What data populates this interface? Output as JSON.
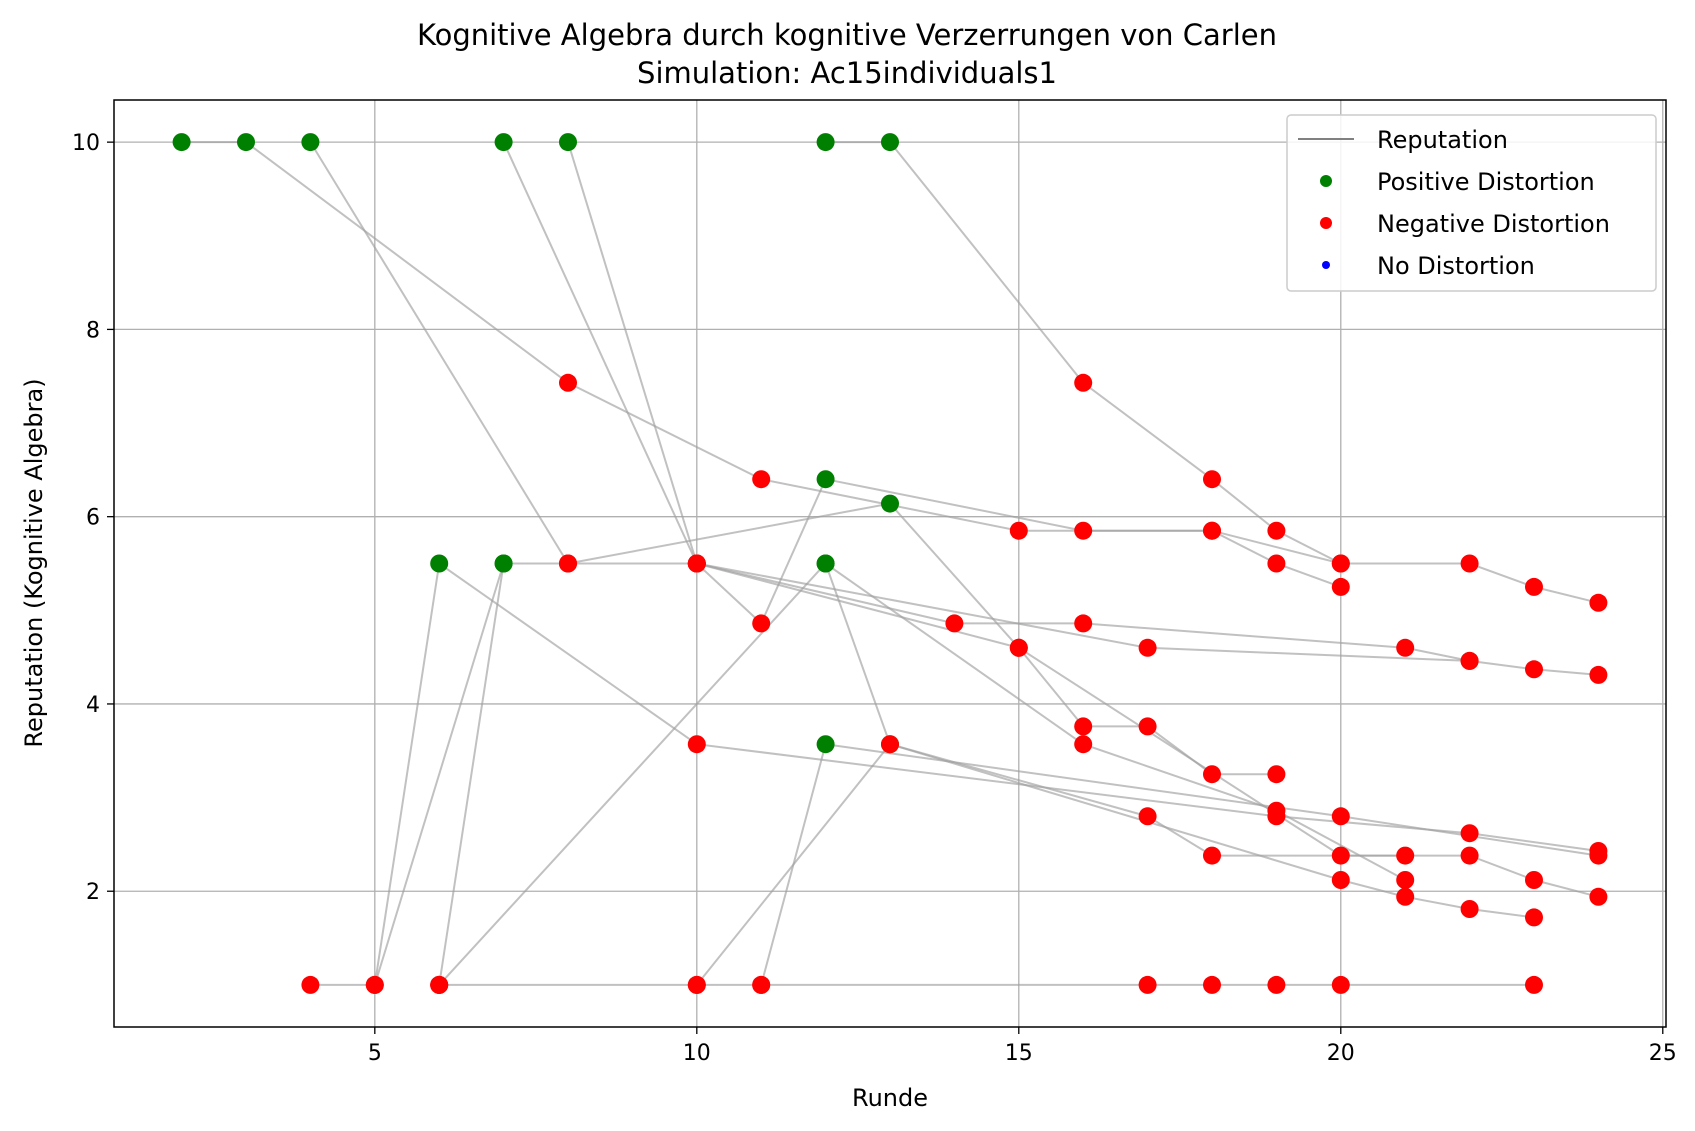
{
  "chart_data": {
    "type": "line",
    "title": "Kognitive Algebra durch kognitive Verzerrungen von Carlen",
    "subtitle": "Simulation: Ac15individuals1",
    "xlabel": "Runde",
    "ylabel": "Reputation (Kognitive Algebra)",
    "xlim": [
      0.95,
      25.05
    ],
    "ylim": [
      0.55,
      10.45
    ],
    "xticks": [
      5,
      10,
      15,
      20,
      25
    ],
    "yticks": [
      2,
      4,
      6,
      8,
      10
    ],
    "grid": true,
    "legend_position": "top-right",
    "colors": {
      "line": "#a0a0a0",
      "positive": "#008000",
      "negative": "#ff0000",
      "none": "#0000ff"
    },
    "legend": [
      {
        "label": "Reputation",
        "kind": "line",
        "color": "#808080"
      },
      {
        "label": "Positive Distortion",
        "kind": "marker",
        "color": "#008000"
      },
      {
        "label": "Negative Distortion",
        "kind": "marker",
        "color": "#ff0000"
      },
      {
        "label": "No Distortion",
        "kind": "marker",
        "color": "#0000ff"
      }
    ],
    "series": [
      {
        "points": [
          [
            2,
            10,
            "P"
          ],
          [
            3,
            10,
            "P"
          ],
          [
            8,
            7.43,
            "N"
          ],
          [
            11,
            6.4,
            "N"
          ],
          [
            15,
            5.85,
            "N"
          ],
          [
            18,
            5.85,
            "N"
          ],
          [
            20,
            5.5,
            "N"
          ],
          [
            22,
            5.5,
            "N"
          ],
          [
            23,
            5.25,
            "N"
          ],
          [
            24,
            5.08,
            "N"
          ]
        ]
      },
      {
        "points": [
          [
            4,
            10,
            "P"
          ],
          [
            8,
            5.5,
            "N"
          ],
          [
            10,
            5.5,
            "N"
          ],
          [
            14,
            4.86,
            "N"
          ],
          [
            16,
            4.86,
            "N"
          ],
          [
            21,
            4.6,
            "N"
          ],
          [
            22,
            4.46,
            "N"
          ],
          [
            23,
            4.37,
            "N"
          ],
          [
            24,
            4.31,
            "N"
          ]
        ]
      },
      {
        "points": [
          [
            7,
            10,
            "P"
          ],
          [
            10,
            5.5,
            "N"
          ],
          [
            17,
            4.6,
            "N"
          ],
          [
            22,
            4.46,
            "N"
          ]
        ]
      },
      {
        "points": [
          [
            8,
            10,
            "P"
          ],
          [
            10,
            5.5,
            "N"
          ],
          [
            11,
            4.86,
            "N"
          ],
          [
            12,
            6.4,
            "P"
          ],
          [
            16,
            5.85,
            "N"
          ],
          [
            18,
            5.85,
            "N"
          ],
          [
            19,
            5.5,
            "N"
          ],
          [
            20,
            5.25,
            "N"
          ]
        ]
      },
      {
        "points": [
          [
            12,
            10,
            "P"
          ],
          [
            13,
            10,
            "P"
          ],
          [
            16,
            7.43,
            "N"
          ],
          [
            18,
            6.4,
            "N"
          ],
          [
            19,
            5.85,
            "N"
          ],
          [
            20,
            5.5,
            "N"
          ]
        ]
      },
      {
        "points": [
          [
            4,
            1,
            "N"
          ],
          [
            5,
            1,
            "N"
          ],
          [
            6,
            5.5,
            "P"
          ],
          [
            10,
            3.57,
            "N"
          ],
          [
            19,
            2.8,
            "N"
          ],
          [
            22,
            2.62,
            "N"
          ],
          [
            24,
            2.43,
            "N"
          ]
        ]
      },
      {
        "points": [
          [
            5,
            1,
            "N"
          ],
          [
            7,
            5.5,
            "P"
          ],
          [
            8,
            5.5,
            "N"
          ],
          [
            13,
            6.14,
            "P"
          ],
          [
            15,
            4.6,
            "N"
          ],
          [
            16,
            3.76,
            "N"
          ],
          [
            17,
            3.76,
            "N"
          ],
          [
            18,
            3.25,
            "N"
          ],
          [
            19,
            3.25,
            "N"
          ]
        ]
      },
      {
        "points": [
          [
            6,
            1,
            "N"
          ],
          [
            7,
            5.5,
            "P"
          ]
        ]
      },
      {
        "points": [
          [
            6,
            1,
            "N"
          ],
          [
            12,
            5.5,
            "P"
          ],
          [
            16,
            3.57,
            "N"
          ],
          [
            19,
            2.86,
            "N"
          ],
          [
            21,
            2.12,
            "N"
          ]
        ]
      },
      {
        "points": [
          [
            6,
            1,
            "N"
          ],
          [
            10,
            1,
            "N"
          ],
          [
            13,
            3.57,
            "P"
          ],
          [
            17,
            2.8,
            "N"
          ],
          [
            18,
            2.38,
            "N"
          ],
          [
            21,
            2.38,
            "N"
          ]
        ]
      },
      {
        "points": [
          [
            10,
            1,
            "N"
          ],
          [
            11,
            1,
            "N"
          ],
          [
            12,
            3.57,
            "P"
          ],
          [
            20,
            2.8,
            "N"
          ],
          [
            24,
            2.38,
            "N"
          ]
        ]
      },
      {
        "points": [
          [
            10,
            5.5,
            "N"
          ],
          [
            15,
            4.6,
            "N"
          ],
          [
            20,
            2.38,
            "N"
          ],
          [
            22,
            2.38,
            "N"
          ],
          [
            23,
            2.12,
            "N"
          ],
          [
            24,
            1.94,
            "N"
          ]
        ]
      },
      {
        "points": [
          [
            12,
            5.5,
            "P"
          ],
          [
            13,
            3.57,
            "N"
          ],
          [
            20,
            2.12,
            "N"
          ],
          [
            21,
            1.94,
            "N"
          ],
          [
            22,
            1.81,
            "N"
          ],
          [
            23,
            1.72,
            "N"
          ]
        ]
      },
      {
        "points": [
          [
            11,
            1,
            "N"
          ],
          [
            17,
            1,
            "N"
          ],
          [
            18,
            1,
            "N"
          ],
          [
            19,
            1,
            "N"
          ],
          [
            20,
            1,
            "N"
          ],
          [
            23,
            1,
            "N"
          ]
        ]
      }
    ]
  }
}
